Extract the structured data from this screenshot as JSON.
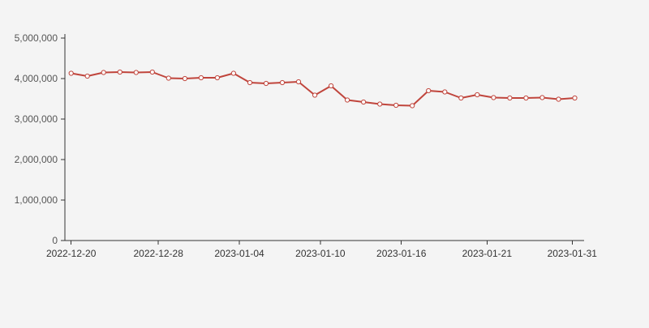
{
  "page": {
    "background": "#f4f4f4"
  },
  "chart_data": {
    "type": "line",
    "title": "",
    "xlabel": "",
    "ylabel": "",
    "grid": false,
    "legend_position": "none",
    "line_color": "#c0453c",
    "marker_fill": "#fdfdfd",
    "axis_color": "#333333",
    "y_label_color": "#555555",
    "x_label_color": "#333333",
    "ylim": [
      0,
      5000000
    ],
    "y_ticks": [
      {
        "value": 0,
        "label": "0"
      },
      {
        "value": 1000000,
        "label": "1,000,000"
      },
      {
        "value": 2000000,
        "label": "2,000,000"
      },
      {
        "value": 3000000,
        "label": "3,000,000"
      },
      {
        "value": 4000000,
        "label": "4,000,000"
      },
      {
        "value": 5000000,
        "label": "5,000,000"
      }
    ],
    "x_ticks": [
      {
        "label": "2022-12-20",
        "pos": 0.012
      },
      {
        "label": "2022-12-28",
        "pos": 0.18
      },
      {
        "label": "2023-01-04",
        "pos": 0.336
      },
      {
        "label": "2023-01-10",
        "pos": 0.492
      },
      {
        "label": "2023-01-16",
        "pos": 0.648
      },
      {
        "label": "2023-01-21",
        "pos": 0.813
      },
      {
        "label": "2023-01-31",
        "pos": 0.977
      }
    ],
    "values": [
      4130000,
      4060000,
      4150000,
      4160000,
      4150000,
      4160000,
      4010000,
      4000000,
      4020000,
      4020000,
      4130000,
      3900000,
      3880000,
      3900000,
      3920000,
      3590000,
      3820000,
      3470000,
      3420000,
      3370000,
      3340000,
      3330000,
      3700000,
      3670000,
      3520000,
      3600000,
      3530000,
      3520000,
      3520000,
      3530000,
      3490000,
      3520000
    ]
  }
}
